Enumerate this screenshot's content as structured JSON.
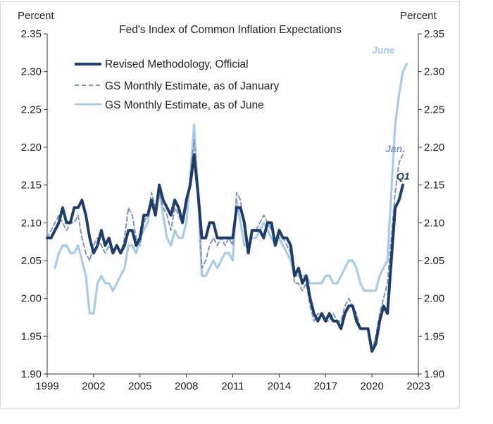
{
  "chart_data": {
    "type": "line",
    "title": "Fed's Index of Common Inflation Expectations",
    "ylabel_left": "Percent",
    "ylabel_right": "Percent",
    "ylim": [
      1.9,
      2.35
    ],
    "yticks": [
      "1.90",
      "1.95",
      "2.00",
      "2.05",
      "2.10",
      "2.15",
      "2.20",
      "2.25",
      "2.30",
      "2.35"
    ],
    "xlim": [
      1999,
      2023
    ],
    "xticks": [
      "1999",
      "2002",
      "2005",
      "2008",
      "2011",
      "2014",
      "2017",
      "2020",
      "2023"
    ],
    "legend_position": "top-left",
    "grid": false,
    "series": [
      {
        "name": "Revised Methodology, Official",
        "color": "#1f3d66",
        "style": "solid-thick",
        "end_label": "Q1",
        "points": [
          [
            1999.0,
            2.08
          ],
          [
            1999.25,
            2.08
          ],
          [
            1999.5,
            2.09
          ],
          [
            1999.75,
            2.1
          ],
          [
            2000.0,
            2.12
          ],
          [
            2000.25,
            2.1
          ],
          [
            2000.5,
            2.1
          ],
          [
            2000.75,
            2.12
          ],
          [
            2001.0,
            2.12
          ],
          [
            2001.25,
            2.13
          ],
          [
            2001.5,
            2.11
          ],
          [
            2001.75,
            2.08
          ],
          [
            2002.0,
            2.06
          ],
          [
            2002.25,
            2.07
          ],
          [
            2002.5,
            2.09
          ],
          [
            2002.75,
            2.07
          ],
          [
            2003.0,
            2.08
          ],
          [
            2003.25,
            2.06
          ],
          [
            2003.5,
            2.07
          ],
          [
            2003.75,
            2.06
          ],
          [
            2004.0,
            2.07
          ],
          [
            2004.25,
            2.09
          ],
          [
            2004.5,
            2.09
          ],
          [
            2004.75,
            2.07
          ],
          [
            2005.0,
            2.08
          ],
          [
            2005.25,
            2.11
          ],
          [
            2005.5,
            2.11
          ],
          [
            2005.75,
            2.13
          ],
          [
            2006.0,
            2.11
          ],
          [
            2006.25,
            2.15
          ],
          [
            2006.5,
            2.13
          ],
          [
            2006.75,
            2.12
          ],
          [
            2007.0,
            2.11
          ],
          [
            2007.25,
            2.13
          ],
          [
            2007.5,
            2.12
          ],
          [
            2007.75,
            2.1
          ],
          [
            2008.0,
            2.13
          ],
          [
            2008.25,
            2.15
          ],
          [
            2008.5,
            2.19
          ],
          [
            2008.75,
            2.14
          ],
          [
            2009.0,
            2.08
          ],
          [
            2009.25,
            2.08
          ],
          [
            2009.5,
            2.1
          ],
          [
            2009.75,
            2.1
          ],
          [
            2010.0,
            2.08
          ],
          [
            2010.25,
            2.08
          ],
          [
            2010.5,
            2.08
          ],
          [
            2010.75,
            2.08
          ],
          [
            2011.0,
            2.08
          ],
          [
            2011.25,
            2.12
          ],
          [
            2011.5,
            2.12
          ],
          [
            2011.75,
            2.1
          ],
          [
            2012.0,
            2.06
          ],
          [
            2012.25,
            2.09
          ],
          [
            2012.5,
            2.09
          ],
          [
            2012.75,
            2.09
          ],
          [
            2013.0,
            2.08
          ],
          [
            2013.25,
            2.1
          ],
          [
            2013.5,
            2.1
          ],
          [
            2013.75,
            2.07
          ],
          [
            2014.0,
            2.09
          ],
          [
            2014.25,
            2.08
          ],
          [
            2014.5,
            2.08
          ],
          [
            2014.75,
            2.07
          ],
          [
            2015.0,
            2.03
          ],
          [
            2015.25,
            2.04
          ],
          [
            2015.5,
            2.02
          ],
          [
            2015.75,
            2.03
          ],
          [
            2016.0,
            2.0
          ],
          [
            2016.25,
            1.98
          ],
          [
            2016.5,
            1.97
          ],
          [
            2016.75,
            1.98
          ],
          [
            2017.0,
            1.97
          ],
          [
            2017.25,
            1.98
          ],
          [
            2017.5,
            1.97
          ],
          [
            2017.75,
            1.97
          ],
          [
            2018.0,
            1.96
          ],
          [
            2018.25,
            1.98
          ],
          [
            2018.5,
            1.99
          ],
          [
            2018.75,
            1.99
          ],
          [
            2019.0,
            1.97
          ],
          [
            2019.25,
            1.96
          ],
          [
            2019.5,
            1.96
          ],
          [
            2019.75,
            1.96
          ],
          [
            2020.0,
            1.93
          ],
          [
            2020.25,
            1.94
          ],
          [
            2020.5,
            1.97
          ],
          [
            2020.75,
            1.99
          ],
          [
            2021.0,
            1.98
          ],
          [
            2021.25,
            2.05
          ],
          [
            2021.5,
            2.12
          ],
          [
            2021.75,
            2.13
          ],
          [
            2022.0,
            2.15
          ]
        ]
      },
      {
        "name": "GS Monthly Estimate, as of January",
        "color": "#7f93bd",
        "style": "dashed",
        "end_label": "Jan.",
        "points": [
          [
            1999.0,
            2.08
          ],
          [
            1999.25,
            2.09
          ],
          [
            1999.5,
            2.1
          ],
          [
            1999.75,
            2.11
          ],
          [
            2000.0,
            2.1
          ],
          [
            2000.25,
            2.09
          ],
          [
            2000.5,
            2.1
          ],
          [
            2000.75,
            2.1
          ],
          [
            2001.0,
            2.11
          ],
          [
            2001.25,
            2.08
          ],
          [
            2001.5,
            2.06
          ],
          [
            2001.75,
            2.05
          ],
          [
            2002.0,
            2.07
          ],
          [
            2002.25,
            2.08
          ],
          [
            2002.5,
            2.07
          ],
          [
            2002.75,
            2.06
          ],
          [
            2003.0,
            2.07
          ],
          [
            2003.25,
            2.06
          ],
          [
            2003.5,
            2.07
          ],
          [
            2003.75,
            2.06
          ],
          [
            2004.0,
            2.08
          ],
          [
            2004.25,
            2.12
          ],
          [
            2004.5,
            2.11
          ],
          [
            2004.75,
            2.08
          ],
          [
            2005.0,
            2.07
          ],
          [
            2005.25,
            2.1
          ],
          [
            2005.5,
            2.11
          ],
          [
            2005.75,
            2.14
          ],
          [
            2006.0,
            2.12
          ],
          [
            2006.25,
            2.14
          ],
          [
            2006.5,
            2.12
          ],
          [
            2006.75,
            2.11
          ],
          [
            2007.0,
            2.09
          ],
          [
            2007.25,
            2.12
          ],
          [
            2007.5,
            2.11
          ],
          [
            2007.75,
            2.1
          ],
          [
            2008.0,
            2.12
          ],
          [
            2008.25,
            2.16
          ],
          [
            2008.5,
            2.21
          ],
          [
            2008.75,
            2.14
          ],
          [
            2009.0,
            2.04
          ],
          [
            2009.25,
            2.05
          ],
          [
            2009.5,
            2.07
          ],
          [
            2009.75,
            2.08
          ],
          [
            2010.0,
            2.07
          ],
          [
            2010.25,
            2.08
          ],
          [
            2010.5,
            2.07
          ],
          [
            2010.75,
            2.08
          ],
          [
            2011.0,
            2.07
          ],
          [
            2011.25,
            2.14
          ],
          [
            2011.5,
            2.13
          ],
          [
            2011.75,
            2.09
          ],
          [
            2012.0,
            2.07
          ],
          [
            2012.25,
            2.09
          ],
          [
            2012.5,
            2.09
          ],
          [
            2012.75,
            2.1
          ],
          [
            2013.0,
            2.11
          ],
          [
            2013.25,
            2.1
          ],
          [
            2013.5,
            2.09
          ],
          [
            2013.75,
            2.08
          ],
          [
            2014.0,
            2.08
          ],
          [
            2014.25,
            2.08
          ],
          [
            2014.5,
            2.07
          ],
          [
            2014.75,
            2.06
          ],
          [
            2015.0,
            2.02
          ],
          [
            2015.25,
            2.02
          ],
          [
            2015.5,
            2.01
          ],
          [
            2015.75,
            2.02
          ],
          [
            2016.0,
            1.99
          ],
          [
            2016.25,
            1.97
          ],
          [
            2016.5,
            1.98
          ],
          [
            2016.75,
            1.98
          ],
          [
            2017.0,
            1.97
          ],
          [
            2017.25,
            1.97
          ],
          [
            2017.5,
            1.98
          ],
          [
            2017.75,
            1.97
          ],
          [
            2018.0,
            1.97
          ],
          [
            2018.25,
            1.99
          ],
          [
            2018.5,
            2.0
          ],
          [
            2018.75,
            1.99
          ],
          [
            2019.0,
            1.98
          ],
          [
            2019.25,
            1.96
          ],
          [
            2019.5,
            1.96
          ],
          [
            2019.75,
            1.96
          ],
          [
            2020.0,
            1.93
          ],
          [
            2020.25,
            1.95
          ],
          [
            2020.5,
            1.98
          ],
          [
            2020.75,
            2.0
          ],
          [
            2021.0,
            2.02
          ],
          [
            2021.25,
            2.08
          ],
          [
            2021.5,
            2.14
          ],
          [
            2021.75,
            2.18
          ],
          [
            2022.0,
            2.19
          ]
        ]
      },
      {
        "name": "GS Monthly Estimate, as of June",
        "color": "#a9cbe8",
        "style": "solid",
        "end_label": "June",
        "points": [
          [
            1999.5,
            2.04
          ],
          [
            1999.75,
            2.06
          ],
          [
            2000.0,
            2.07
          ],
          [
            2000.25,
            2.07
          ],
          [
            2000.5,
            2.06
          ],
          [
            2000.75,
            2.06
          ],
          [
            2001.0,
            2.07
          ],
          [
            2001.25,
            2.05
          ],
          [
            2001.5,
            2.03
          ],
          [
            2001.75,
            1.98
          ],
          [
            2002.0,
            1.98
          ],
          [
            2002.25,
            2.02
          ],
          [
            2002.5,
            2.03
          ],
          [
            2002.75,
            2.02
          ],
          [
            2003.0,
            2.02
          ],
          [
            2003.25,
            2.01
          ],
          [
            2003.5,
            2.02
          ],
          [
            2003.75,
            2.03
          ],
          [
            2004.0,
            2.04
          ],
          [
            2004.25,
            2.07
          ],
          [
            2004.5,
            2.07
          ],
          [
            2004.75,
            2.06
          ],
          [
            2005.0,
            2.08
          ],
          [
            2005.25,
            2.09
          ],
          [
            2005.5,
            2.1
          ],
          [
            2005.75,
            2.13
          ],
          [
            2006.0,
            2.12
          ],
          [
            2006.25,
            2.14
          ],
          [
            2006.5,
            2.11
          ],
          [
            2006.75,
            2.08
          ],
          [
            2007.0,
            2.07
          ],
          [
            2007.25,
            2.09
          ],
          [
            2007.5,
            2.08
          ],
          [
            2007.75,
            2.08
          ],
          [
            2008.0,
            2.1
          ],
          [
            2008.25,
            2.16
          ],
          [
            2008.5,
            2.23
          ],
          [
            2008.75,
            2.14
          ],
          [
            2009.0,
            2.03
          ],
          [
            2009.25,
            2.03
          ],
          [
            2009.5,
            2.04
          ],
          [
            2009.75,
            2.05
          ],
          [
            2010.0,
            2.04
          ],
          [
            2010.25,
            2.05
          ],
          [
            2010.5,
            2.06
          ],
          [
            2010.75,
            2.06
          ],
          [
            2011.0,
            2.05
          ],
          [
            2011.25,
            2.13
          ],
          [
            2011.5,
            2.1
          ],
          [
            2011.75,
            2.07
          ],
          [
            2012.0,
            2.07
          ],
          [
            2012.25,
            2.08
          ],
          [
            2012.5,
            2.08
          ],
          [
            2012.75,
            2.09
          ],
          [
            2013.0,
            2.1
          ],
          [
            2013.25,
            2.09
          ],
          [
            2013.5,
            2.08
          ],
          [
            2013.75,
            2.07
          ],
          [
            2014.0,
            2.08
          ],
          [
            2014.25,
            2.07
          ],
          [
            2014.5,
            2.06
          ],
          [
            2014.75,
            2.05
          ],
          [
            2015.0,
            2.03
          ],
          [
            2015.25,
            2.03
          ],
          [
            2015.5,
            2.03
          ],
          [
            2015.75,
            2.03
          ],
          [
            2016.0,
            2.02
          ],
          [
            2016.25,
            2.02
          ],
          [
            2016.5,
            2.02
          ],
          [
            2016.75,
            2.02
          ],
          [
            2017.0,
            2.03
          ],
          [
            2017.25,
            2.03
          ],
          [
            2017.5,
            2.02
          ],
          [
            2017.75,
            2.02
          ],
          [
            2018.0,
            2.03
          ],
          [
            2018.25,
            2.04
          ],
          [
            2018.5,
            2.05
          ],
          [
            2018.75,
            2.05
          ],
          [
            2019.0,
            2.04
          ],
          [
            2019.25,
            2.02
          ],
          [
            2019.5,
            2.01
          ],
          [
            2019.75,
            2.01
          ],
          [
            2020.0,
            2.01
          ],
          [
            2020.25,
            2.01
          ],
          [
            2020.5,
            2.03
          ],
          [
            2020.75,
            2.04
          ],
          [
            2021.0,
            2.05
          ],
          [
            2021.25,
            2.14
          ],
          [
            2021.5,
            2.23
          ],
          [
            2021.75,
            2.27
          ],
          [
            2022.0,
            2.3
          ],
          [
            2022.25,
            2.31
          ]
        ]
      }
    ]
  }
}
